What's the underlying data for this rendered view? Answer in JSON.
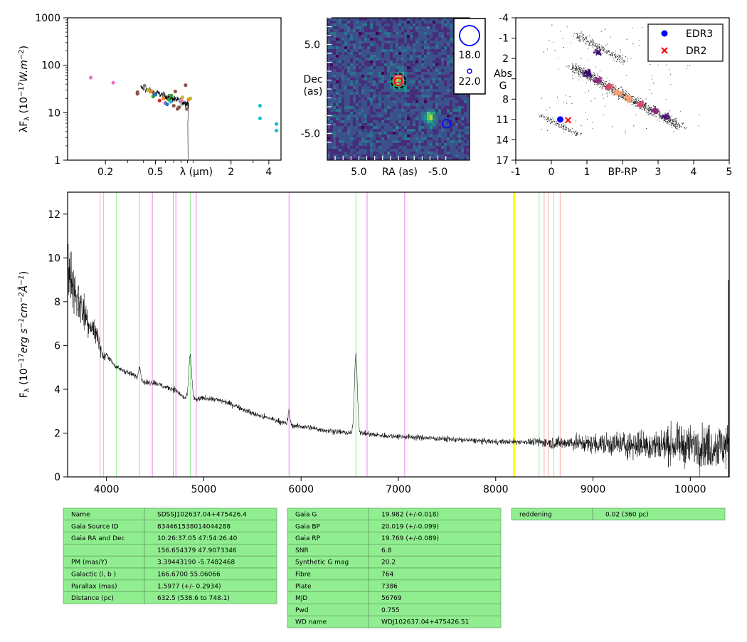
{
  "sed": {
    "ylabel": "λF_λ (10^-17 W.m^-2)",
    "xlabel": "λ (μm)",
    "yticks": [
      {
        "v": 1,
        "label": "1"
      },
      {
        "v": 10,
        "label": "10"
      },
      {
        "v": 100,
        "label": "100"
      },
      {
        "v": 1000,
        "label": "1000"
      }
    ],
    "xticks": [
      {
        "v": 0.2,
        "label": "0.2"
      },
      {
        "v": 0.5,
        "label": "0.5"
      },
      {
        "v": 2,
        "label": "2"
      },
      {
        "v": 4,
        "label": "4"
      }
    ],
    "xlim": [
      0.1,
      5.0
    ],
    "ylim": [
      1,
      1000
    ],
    "points": [
      {
        "x": 0.153,
        "y": 55,
        "color": "#e377c2"
      },
      {
        "x": 0.231,
        "y": 43,
        "color": "#e377c2"
      },
      {
        "x": 0.36,
        "y": 27,
        "color": "#8c564b"
      },
      {
        "x": 0.36,
        "y": 25,
        "color": "#8c564b"
      },
      {
        "x": 0.41,
        "y": 37,
        "color": "#7f7f7f"
      },
      {
        "x": 0.44,
        "y": 30,
        "color": "#bcbd22"
      },
      {
        "x": 0.46,
        "y": 28,
        "color": "#ff7f0e"
      },
      {
        "x": 0.48,
        "y": 22,
        "color": "#2ca02c"
      },
      {
        "x": 0.5,
        "y": 24,
        "color": "#1f77b4"
      },
      {
        "x": 0.54,
        "y": 18,
        "color": "#d62728"
      },
      {
        "x": 0.58,
        "y": 20,
        "color": "#ff7f0e"
      },
      {
        "x": 0.6,
        "y": 16,
        "color": "#9467bd"
      },
      {
        "x": 0.62,
        "y": 15,
        "color": "#1f77b4"
      },
      {
        "x": 0.64,
        "y": 19,
        "color": "#2ca02c"
      },
      {
        "x": 0.66,
        "y": 17,
        "color": "#17becf"
      },
      {
        "x": 0.67,
        "y": 23,
        "color": "#2ca02c"
      },
      {
        "x": 0.7,
        "y": 14,
        "color": "#8c564b"
      },
      {
        "x": 0.72,
        "y": 28,
        "color": "#8c564b"
      },
      {
        "x": 0.75,
        "y": 12,
        "color": "#8c564b"
      },
      {
        "x": 0.77,
        "y": 13,
        "color": "#8c564b"
      },
      {
        "x": 0.8,
        "y": 18,
        "color": "#e377c2"
      },
      {
        "x": 0.82,
        "y": 21,
        "color": "#bcbd22"
      },
      {
        "x": 0.87,
        "y": 38,
        "color": "#8c564b"
      },
      {
        "x": 0.89,
        "y": 12,
        "color": "#8c564b"
      },
      {
        "x": 0.92,
        "y": 19,
        "color": "#ff7f0e"
      },
      {
        "x": 0.95,
        "y": 20,
        "color": "#bcbd22"
      },
      {
        "x": 3.4,
        "y": 14,
        "color": "#17becf"
      },
      {
        "x": 3.4,
        "y": 7.6,
        "color": "#17becf"
      },
      {
        "x": 4.6,
        "y": 5.8,
        "color": "#17becf"
      },
      {
        "x": 4.6,
        "y": 4.2,
        "color": "#17becf"
      }
    ]
  },
  "image_panel": {
    "xlabel": "RA (as)",
    "ylabel_line1": "Dec",
    "ylabel_line2": "(as)",
    "xticks": [
      {
        "v": 5,
        "label": "5.0"
      },
      {
        "v": -5,
        "label": "-5.0"
      }
    ],
    "yticks": [
      {
        "v": 5,
        "label": "5.0"
      },
      {
        "v": -5,
        "label": "-5.0"
      }
    ],
    "xlim": [
      9,
      -9
    ],
    "ylim": [
      -8,
      8
    ],
    "legend_big": "18.0",
    "legend_small": "22.0"
  },
  "hr": {
    "xlabel": "BP-RP",
    "ylabel_line1": "Abs",
    "ylabel_line2": "G",
    "xticks": [
      {
        "v": -1,
        "label": "-1"
      },
      {
        "v": 0,
        "label": "0"
      },
      {
        "v": 1,
        "label": "1"
      },
      {
        "v": 3,
        "label": "3"
      },
      {
        "v": 4,
        "label": "4"
      },
      {
        "v": 5,
        "label": "5"
      }
    ],
    "yticks": [
      {
        "v": -4,
        "label": "-4"
      },
      {
        "v": -1,
        "label": "-1"
      },
      {
        "v": 2,
        "label": "2"
      },
      {
        "v": 8,
        "label": "8"
      },
      {
        "v": 11,
        "label": "11"
      },
      {
        "v": 14,
        "label": "14"
      },
      {
        "v": 17,
        "label": "17"
      }
    ],
    "xlim": [
      -1,
      5
    ],
    "ylim": [
      17,
      -4
    ],
    "legend": [
      {
        "label": "EDR3",
        "marker": "circle",
        "color": "#0000ff"
      },
      {
        "label": "DR2",
        "marker": "cross",
        "color": "#ff0000"
      }
    ],
    "points": {
      "edr3": {
        "x": 0.25,
        "y": 11.0
      },
      "dr2": {
        "x": 0.47,
        "y": 11.1
      }
    }
  },
  "chart_data": {
    "type": "line",
    "xlabel": "",
    "ylabel": "Fλ (10^-17 erg s^-1 cm^-2 Å^-1)",
    "xlim": [
      3600,
      10400
    ],
    "ylim": [
      0,
      13
    ],
    "xticks": [
      4000,
      5000,
      6000,
      7000,
      8000,
      9000,
      10000
    ],
    "yticks": [
      0,
      2,
      4,
      6,
      8,
      10,
      12
    ],
    "continuum": [
      [
        3600,
        9.5
      ],
      [
        3700,
        8.2
      ],
      [
        3800,
        7.2
      ],
      [
        3900,
        6.5
      ],
      [
        3970,
        5.4
      ],
      [
        4000,
        5.6
      ],
      [
        4100,
        5.0
      ],
      [
        4200,
        4.8
      ],
      [
        4300,
        4.6
      ],
      [
        4400,
        4.3
      ],
      [
        4500,
        4.3
      ],
      [
        4600,
        4.1
      ],
      [
        4700,
        4.0
      ],
      [
        4800,
        3.6
      ],
      [
        4900,
        3.5
      ],
      [
        5000,
        3.6
      ],
      [
        5100,
        3.55
      ],
      [
        5200,
        3.45
      ],
      [
        5300,
        3.3
      ],
      [
        5400,
        3.1
      ],
      [
        5500,
        2.9
      ],
      [
        5600,
        2.75
      ],
      [
        5700,
        2.65
      ],
      [
        5800,
        2.5
      ],
      [
        5900,
        2.35
      ],
      [
        6000,
        2.3
      ],
      [
        6100,
        2.25
      ],
      [
        6200,
        2.15
      ],
      [
        6300,
        2.1
      ],
      [
        6400,
        2.05
      ],
      [
        6500,
        2.0
      ],
      [
        6600,
        2.0
      ],
      [
        6700,
        1.95
      ],
      [
        6800,
        1.9
      ],
      [
        7000,
        1.85
      ],
      [
        7200,
        1.8
      ],
      [
        7400,
        1.75
      ],
      [
        7600,
        1.7
      ],
      [
        7800,
        1.65
      ],
      [
        8000,
        1.6
      ],
      [
        8200,
        1.6
      ],
      [
        8400,
        1.6
      ],
      [
        8600,
        1.55
      ],
      [
        8800,
        1.55
      ],
      [
        9000,
        1.5
      ],
      [
        9200,
        1.5
      ],
      [
        9400,
        1.45
      ],
      [
        9600,
        1.45
      ],
      [
        9800,
        1.45
      ],
      [
        10000,
        1.45
      ],
      [
        10200,
        1.4
      ],
      [
        10400,
        1.4
      ]
    ],
    "emission": [
      {
        "x": 4861,
        "amp": 2.0,
        "w": 15
      },
      {
        "x": 5876,
        "amp": 0.6,
        "w": 10
      },
      {
        "x": 6563,
        "amp": 3.6,
        "w": 15
      },
      {
        "x": 4340,
        "amp": 0.6,
        "w": 10
      }
    ],
    "reference_lines": [
      {
        "x": 3934,
        "color": "#ffaaaa"
      },
      {
        "x": 3968,
        "color": "#ffaaaa"
      },
      {
        "x": 4102,
        "color": "#90ee90"
      },
      {
        "x": 4340,
        "color": "#90ee90"
      },
      {
        "x": 4471,
        "color": "#ee82ee"
      },
      {
        "x": 4686,
        "color": "#ee82ee"
      },
      {
        "x": 4713,
        "color": "#ee82ee"
      },
      {
        "x": 4861,
        "color": "#90ee90"
      },
      {
        "x": 4922,
        "color": "#ee82ee"
      },
      {
        "x": 5876,
        "color": "#ee82ee"
      },
      {
        "x": 6563,
        "color": "#90ee90"
      },
      {
        "x": 6678,
        "color": "#ee82ee"
      },
      {
        "x": 7065,
        "color": "#ee82ee"
      },
      {
        "x": 8183,
        "color": "#ffff00"
      },
      {
        "x": 8195,
        "color": "#ffff00"
      },
      {
        "x": 8446,
        "color": "#90ee90"
      },
      {
        "x": 8498,
        "color": "#ffaaaa"
      },
      {
        "x": 8542,
        "color": "#ffaaaa"
      },
      {
        "x": 8598,
        "color": "#90ee90"
      },
      {
        "x": 8662,
        "color": "#ffaaaa"
      }
    ]
  },
  "tables": {
    "fill": "#90ee90",
    "left": [
      [
        "Name",
        "SDSSJ102637.04+475426.4"
      ],
      [
        "Gaia Source ID",
        "834461538014044288"
      ],
      [
        "Gaia RA and Dec",
        "10:26:37.05     47:54:26.40"
      ],
      [
        "",
        "156.654379     47.9073346"
      ],
      [
        "PM (mas/Y)",
        "3.39443190     -5.7482468"
      ],
      [
        "Galactic (l, b )",
        "166.6700     55.06066"
      ],
      [
        "Parallax (mas)",
        "1.5977 (+/- 0.2934)"
      ],
      [
        "Distance (pc)",
        "632.5 (538.6 to 748.1)"
      ]
    ],
    "middle": [
      [
        "Gaia G",
        "19.982 (+/-0.018)"
      ],
      [
        "Gaia BP",
        "20.019 (+/-0.099)"
      ],
      [
        "Gaia RP",
        "19.769 (+/-0.089)"
      ],
      [
        "SNR",
        "6.8"
      ],
      [
        "Synthetic G mag",
        "20.2"
      ],
      [
        "Fibre",
        "764"
      ],
      [
        "Plate",
        "7386"
      ],
      [
        "MJD",
        "56769"
      ],
      [
        "Pwd",
        "0.755"
      ],
      [
        "WD name",
        "WDJ102637.04+475426.51"
      ]
    ],
    "right": [
      [
        "reddening",
        "0.02 (360 pc)"
      ]
    ]
  }
}
